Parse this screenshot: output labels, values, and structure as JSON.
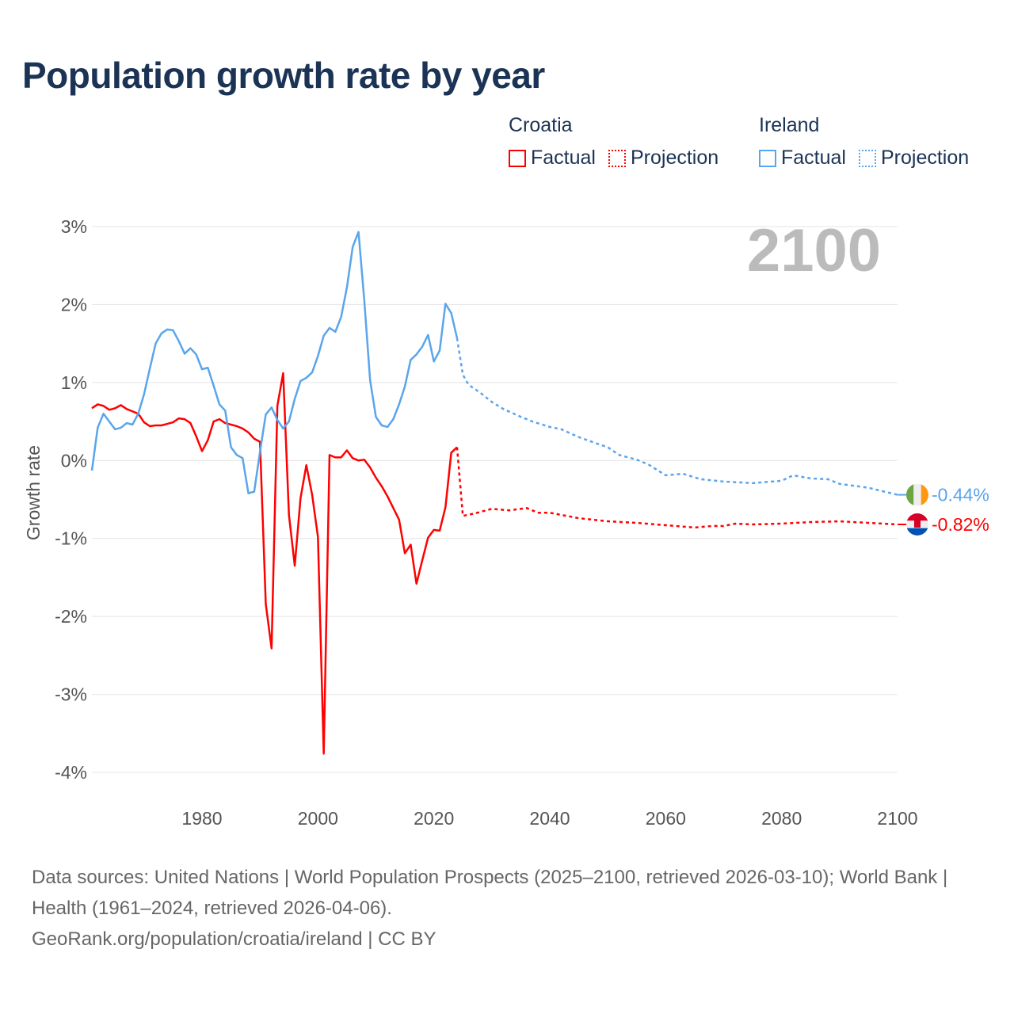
{
  "title": "Population growth rate by year",
  "legend": [
    {
      "country": "Croatia",
      "factual_label": "Factual",
      "projection_label": "Projection",
      "color": "#ff0000"
    },
    {
      "country": "Ireland",
      "factual_label": "Factual",
      "projection_label": "Projection",
      "color": "#5aa5eb"
    }
  ],
  "footer": {
    "sources": "Data sources: United Nations | World Population Prospects (2025–2100, retrieved 2026-03-10); World Bank | Health (1961–2024, retrieved 2026-04-06).",
    "attribution": "GeoRank.org/population/croatia/ireland | CC BY"
  },
  "chart_data": {
    "type": "line",
    "title": "Population growth rate by year",
    "xlabel": "",
    "ylabel": "Growth rate",
    "xlim": [
      1961,
      2100
    ],
    "ylim": [
      -4,
      3
    ],
    "x_ticks": [
      "1980",
      "2000",
      "2020",
      "2040",
      "2060",
      "2080",
      "2100"
    ],
    "x_tick_values": [
      1980,
      2000,
      2020,
      2040,
      2060,
      2080,
      2100
    ],
    "y_ticks": [
      "3%",
      "2%",
      "1%",
      "0%",
      "-1%",
      "-2%",
      "-3%",
      "-4%"
    ],
    "y_tick_values": [
      3,
      2,
      1,
      0,
      -1,
      -2,
      -3,
      -4
    ],
    "grid": true,
    "current_year_label": "2100",
    "series": [
      {
        "name": "Croatia",
        "color": "#ff0000",
        "end_label": "-0.82%",
        "factual_start": 1961,
        "factual": [
          0.67,
          0.72,
          0.7,
          0.65,
          0.67,
          0.71,
          0.66,
          0.63,
          0.6,
          0.49,
          0.44,
          0.45,
          0.45,
          0.47,
          0.49,
          0.54,
          0.53,
          0.48,
          0.31,
          0.12,
          0.26,
          0.5,
          0.53,
          0.48,
          0.46,
          0.44,
          0.41,
          0.36,
          0.28,
          0.24,
          -1.84,
          -2.41,
          0.7,
          1.12,
          -0.7,
          -1.35,
          -0.48,
          -0.06,
          -0.44,
          -0.98,
          -3.76,
          0.07,
          0.04,
          0.04,
          0.13,
          0.03,
          0.0,
          0.01,
          -0.09,
          -0.22,
          -0.33,
          -0.46,
          -0.61,
          -0.76,
          -1.19,
          -1.08,
          -1.58,
          -1.28,
          -0.99,
          -0.89,
          -0.9,
          -0.6,
          0.1,
          0.17
        ],
        "projection": [
          [
            2024,
            0.17
          ],
          [
            2025,
            -0.71
          ],
          [
            2027,
            -0.68
          ],
          [
            2030,
            -0.62
          ],
          [
            2033,
            -0.64
          ],
          [
            2036,
            -0.61
          ],
          [
            2038,
            -0.67
          ],
          [
            2040,
            -0.67
          ],
          [
            2045,
            -0.74
          ],
          [
            2050,
            -0.78
          ],
          [
            2055,
            -0.8
          ],
          [
            2060,
            -0.83
          ],
          [
            2065,
            -0.86
          ],
          [
            2068,
            -0.84
          ],
          [
            2070,
            -0.84
          ],
          [
            2072,
            -0.81
          ],
          [
            2075,
            -0.82
          ],
          [
            2080,
            -0.81
          ],
          [
            2085,
            -0.79
          ],
          [
            2090,
            -0.78
          ],
          [
            2095,
            -0.8
          ],
          [
            2100,
            -0.82
          ]
        ]
      },
      {
        "name": "Ireland",
        "color": "#5aa5eb",
        "end_label": "-0.44%",
        "factual_start": 1961,
        "factual": [
          -0.13,
          0.42,
          0.6,
          0.5,
          0.4,
          0.42,
          0.48,
          0.46,
          0.6,
          0.85,
          1.18,
          1.5,
          1.63,
          1.68,
          1.67,
          1.53,
          1.37,
          1.44,
          1.36,
          1.17,
          1.19,
          0.96,
          0.72,
          0.64,
          0.17,
          0.07,
          0.03,
          -0.42,
          -0.4,
          0.11,
          0.59,
          0.68,
          0.52,
          0.41,
          0.5,
          0.79,
          1.02,
          1.06,
          1.13,
          1.34,
          1.6,
          1.7,
          1.65,
          1.84,
          2.22,
          2.74,
          2.93,
          2.05,
          1.03,
          0.56,
          0.45,
          0.43,
          0.53,
          0.72,
          0.95,
          1.29,
          1.36,
          1.46,
          1.61,
          1.27,
          1.41,
          2.01,
          1.89,
          1.57
        ],
        "projection": [
          [
            2024,
            1.57
          ],
          [
            2025,
            1.1
          ],
          [
            2026,
            0.97
          ],
          [
            2028,
            0.87
          ],
          [
            2030,
            0.75
          ],
          [
            2032,
            0.66
          ],
          [
            2035,
            0.56
          ],
          [
            2037,
            0.5
          ],
          [
            2040,
            0.43
          ],
          [
            2042,
            0.4
          ],
          [
            2045,
            0.3
          ],
          [
            2048,
            0.22
          ],
          [
            2050,
            0.17
          ],
          [
            2052,
            0.07
          ],
          [
            2055,
            0.01
          ],
          [
            2057,
            -0.05
          ],
          [
            2060,
            -0.19
          ],
          [
            2063,
            -0.17
          ],
          [
            2066,
            -0.24
          ],
          [
            2070,
            -0.27
          ],
          [
            2075,
            -0.29
          ],
          [
            2080,
            -0.26
          ],
          [
            2082,
            -0.19
          ],
          [
            2085,
            -0.23
          ],
          [
            2088,
            -0.24
          ],
          [
            2090,
            -0.3
          ],
          [
            2095,
            -0.35
          ],
          [
            2100,
            -0.44
          ]
        ]
      }
    ]
  }
}
